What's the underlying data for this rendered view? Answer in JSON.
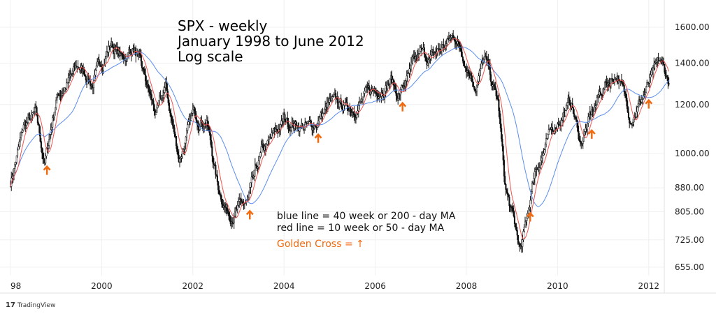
{
  "title_lines": [
    "SPX - weekly",
    "January 1998  to June 2012",
    "Log scale"
  ],
  "legend": {
    "blue": "blue line = 40 week or 200 - day MA",
    "red": "red line = 10 week or 50 - day MA",
    "golden": "Golden Cross = ↑"
  },
  "brand": "TradingView",
  "colors": {
    "candle": "#111111",
    "ma40": "#5b8def",
    "ma10": "#ef5350",
    "arrow": "#f06a10",
    "grid": "#f0f0f0"
  },
  "chart_data": {
    "type": "line",
    "scale": "log",
    "title": "SPX - weekly January 1998 to June 2012 Log scale",
    "x_ticks": [
      "98",
      "2000",
      "2002",
      "2004",
      "2006",
      "2008",
      "2010",
      "2012"
    ],
    "x_tick_values": [
      1998,
      2000,
      2002,
      2004,
      2006,
      2008,
      2010,
      2012
    ],
    "y_ticks": [
      "1600.00",
      "1400.00",
      "1200.00",
      "1000.00",
      "880.00",
      "805.00",
      "725.00",
      "655.00"
    ],
    "y_tick_values": [
      1600,
      1400,
      1200,
      1000,
      880,
      805,
      725,
      655
    ],
    "ylim": [
      640,
      1650
    ],
    "xlim": [
      1997.98,
      2012.6
    ],
    "price_path": [
      [
        1998.0,
        900
      ],
      [
        1998.3,
        1110
      ],
      [
        1998.55,
        1150
      ],
      [
        1998.75,
        960
      ],
      [
        1999.0,
        1230
      ],
      [
        1999.5,
        1380
      ],
      [
        1999.8,
        1300
      ],
      [
        2000.2,
        1510
      ],
      [
        2000.45,
        1420
      ],
      [
        2000.7,
        1490
      ],
      [
        2001.2,
        1150
      ],
      [
        2001.4,
        1270
      ],
      [
        2001.7,
        980
      ],
      [
        2002.0,
        1150
      ],
      [
        2002.3,
        1140
      ],
      [
        2002.55,
        880
      ],
      [
        2002.8,
        800
      ],
      [
        2003.2,
        830
      ],
      [
        2003.5,
        990
      ],
      [
        2004.0,
        1130
      ],
      [
        2004.6,
        1100
      ],
      [
        2005.0,
        1200
      ],
      [
        2005.5,
        1190
      ],
      [
        2006.35,
        1320
      ],
      [
        2006.5,
        1240
      ],
      [
        2007.0,
        1440
      ],
      [
        2007.2,
        1420
      ],
      [
        2007.75,
        1550
      ],
      [
        2008.2,
        1300
      ],
      [
        2008.4,
        1420
      ],
      [
        2008.7,
        1200
      ],
      [
        2008.85,
        880
      ],
      [
        2009.2,
        690
      ],
      [
        2009.5,
        940
      ],
      [
        2010.0,
        1130
      ],
      [
        2010.3,
        1210
      ],
      [
        2010.5,
        1040
      ],
      [
        2011.0,
        1280
      ],
      [
        2011.3,
        1350
      ],
      [
        2011.6,
        1150
      ],
      [
        2011.8,
        1210
      ],
      [
        2012.25,
        1400
      ],
      [
        2012.45,
        1300
      ]
    ],
    "series": [
      {
        "name": "SPX weekly"
      },
      {
        "name": "40 week MA"
      },
      {
        "name": "10 week MA"
      }
    ],
    "golden_cross_x": [
      1998.8,
      2003.25,
      2004.75,
      2006.6,
      2009.4,
      2010.75,
      2012.0
    ]
  }
}
